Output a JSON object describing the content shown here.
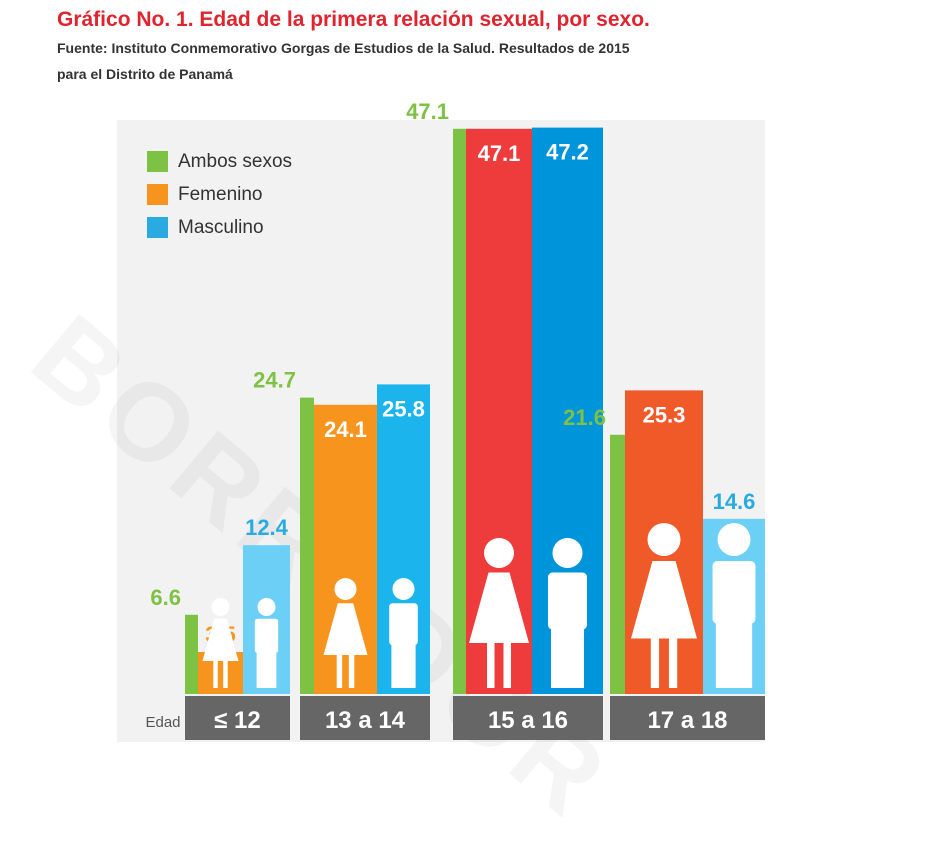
{
  "title": "Gráfico No. 1. Edad de la primera relación sexual, por sexo.",
  "source_line1": "Fuente: Instituto Conmemorativo Gorgas de Estudios de la Salud. Resultados de 2015",
  "source_line2": "para el Distrito de Panamá",
  "watermark": "BORRADOR",
  "chart_data": {
    "type": "bar",
    "xlabel": "Edad",
    "categories": [
      "≤ 12",
      "13 a 14",
      "15 a 16",
      "17 a 18"
    ],
    "series": [
      {
        "name": "Ambos sexos",
        "values": [
          6.6,
          24.7,
          47.1,
          21.6
        ],
        "color": "#7dc242"
      },
      {
        "name": "Femenino",
        "values": [
          3.5,
          24.1,
          47.1,
          25.3
        ],
        "color": "#f7941d",
        "bar_colors": [
          "#f7941d",
          "#f7941d",
          "#ee3b3b",
          "#f05a28"
        ]
      },
      {
        "name": "Masculino",
        "values": [
          12.4,
          25.8,
          47.2,
          14.6
        ],
        "color": "#29abe2",
        "bar_colors": [
          "#6ccff6",
          "#1cb4ec",
          "#0095da",
          "#6ccff6"
        ]
      }
    ],
    "legend_position": "top-left",
    "grid": false,
    "axis_band_color": "#666666"
  }
}
